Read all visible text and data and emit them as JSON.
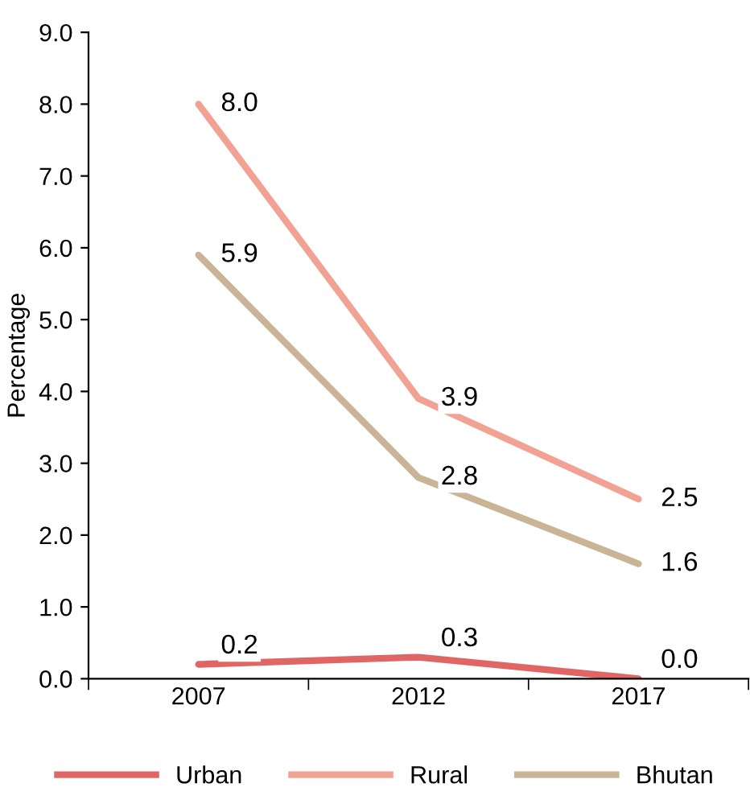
{
  "chart_data": {
    "type": "line",
    "ylabel": "Percentage",
    "categories": [
      "2007",
      "2012",
      "2017"
    ],
    "series": [
      {
        "name": "Urban",
        "color": "#e06666",
        "values": [
          0.2,
          0.3,
          0.0
        ],
        "value_labels": [
          "0.2",
          "0.3",
          "0.0"
        ]
      },
      {
        "name": "Rural",
        "color": "#f2a293",
        "values": [
          8.0,
          3.9,
          2.5
        ],
        "value_labels": [
          "8.0",
          "3.9",
          "2.5"
        ]
      },
      {
        "name": "Bhutan",
        "color": "#c9b496",
        "values": [
          5.9,
          2.8,
          1.6
        ],
        "value_labels": [
          "5.9",
          "2.8",
          "1.6"
        ]
      }
    ],
    "ylim": [
      0,
      9
    ],
    "yticks": [
      {
        "value": 0,
        "label": "0.0"
      },
      {
        "value": 1,
        "label": "1.0"
      },
      {
        "value": 2,
        "label": "2.0"
      },
      {
        "value": 3,
        "label": "3.0"
      },
      {
        "value": 4,
        "label": "4.0"
      },
      {
        "value": 5,
        "label": "5.0"
      },
      {
        "value": 6,
        "label": "6.0"
      },
      {
        "value": 7,
        "label": "7.0"
      },
      {
        "value": 8,
        "label": "8.0"
      },
      {
        "value": 9,
        "label": "9.0"
      }
    ],
    "legend": "bottom",
    "grid": false,
    "marker": "none",
    "line_style": "solid"
  }
}
